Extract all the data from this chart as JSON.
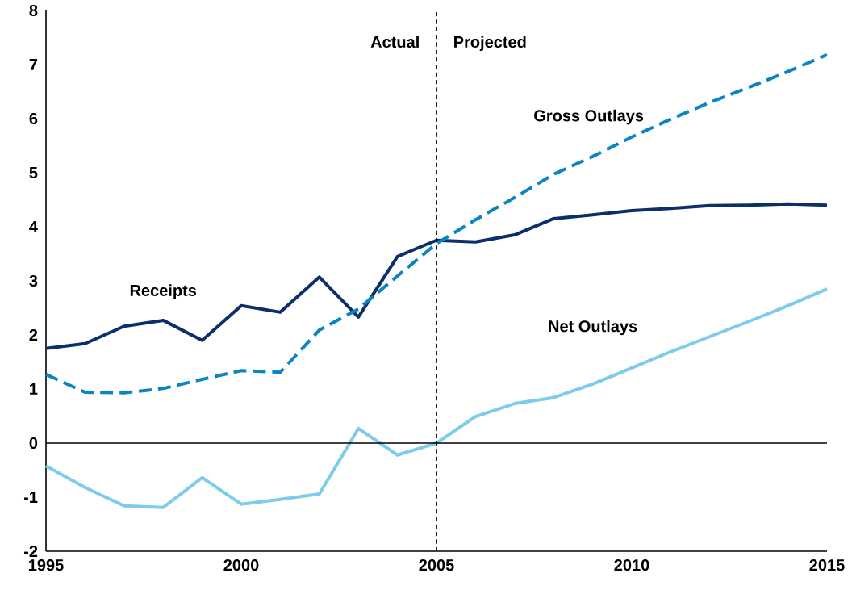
{
  "chart_data": {
    "type": "line",
    "x": [
      1995,
      1996,
      1997,
      1998,
      1999,
      2000,
      2001,
      2002,
      2003,
      2004,
      2005,
      2006,
      2007,
      2008,
      2009,
      2010,
      2011,
      2012,
      2013,
      2014,
      2015
    ],
    "series": [
      {
        "name": "Receipts",
        "color": "#0b2f6b",
        "line_style": "solid",
        "values": [
          1.75,
          1.84,
          2.16,
          2.27,
          1.9,
          2.54,
          2.42,
          3.07,
          2.33,
          3.45,
          3.75,
          3.72,
          3.85,
          4.15,
          4.22,
          4.3,
          4.34,
          4.39,
          4.4,
          4.42,
          4.4
        ]
      },
      {
        "name": "Gross Outlays",
        "color": "#0a85c2",
        "line_style": "dashed",
        "values": [
          1.27,
          0.94,
          0.93,
          1.01,
          1.18,
          1.34,
          1.31,
          2.09,
          2.48,
          3.09,
          3.69,
          4.13,
          4.54,
          4.97,
          5.3,
          5.66,
          5.99,
          6.3,
          6.58,
          6.87,
          7.18
        ]
      },
      {
        "name": "Net Outlays",
        "color": "#7fcbea",
        "line_style": "solid",
        "values": [
          -0.42,
          -0.82,
          -1.16,
          -1.19,
          -0.64,
          -1.13,
          -1.04,
          -0.94,
          0.27,
          -0.22,
          0,
          0.49,
          0.73,
          0.84,
          1.09,
          1.39,
          1.69,
          1.97,
          2.25,
          2.54,
          2.85
        ]
      }
    ],
    "xlim": [
      1995,
      2015
    ],
    "xticks": [
      1995,
      2000,
      2005,
      2010,
      2015
    ],
    "ylim": [
      -2,
      8
    ],
    "yticks": [
      -2,
      -1,
      0,
      1,
      2,
      3,
      4,
      5,
      6,
      7,
      8
    ],
    "ref_lines": [
      {
        "axis": "x",
        "value": 2005,
        "color": "#000000",
        "line_style": "dashed"
      },
      {
        "axis": "y",
        "value": 0,
        "color": "#000000",
        "line_style": "solid"
      }
    ],
    "annotations": [
      "Actual",
      "Projected"
    ],
    "grid": false,
    "legend": false
  }
}
